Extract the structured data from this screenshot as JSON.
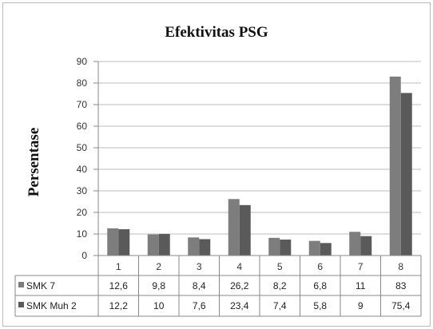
{
  "chart_data": {
    "type": "bar",
    "title": "Efektivitas PSG",
    "ylabel": "Persentase",
    "xlabel": "",
    "ylim": [
      0,
      90
    ],
    "yticks": [
      0,
      10,
      20,
      30,
      40,
      50,
      60,
      70,
      80,
      90
    ],
    "grid": true,
    "legend": "table-left",
    "categories": [
      "1",
      "2",
      "3",
      "4",
      "5",
      "6",
      "7",
      "8"
    ],
    "series": [
      {
        "name": "SMK 7",
        "color": "#7d7d7d",
        "values": [
          12.6,
          9.8,
          8.4,
          26.2,
          8.2,
          6.8,
          11,
          83
        ],
        "labels": [
          "12,6",
          "9,8",
          "8,4",
          "26,2",
          "8,2",
          "6,8",
          "11",
          "83"
        ]
      },
      {
        "name": "SMK Muh 2",
        "color": "#5a5a5a",
        "values": [
          12.2,
          10,
          7.6,
          23.4,
          7.4,
          5.8,
          9,
          75.4
        ],
        "labels": [
          "12,2",
          "10",
          "7,6",
          "23,4",
          "7,4",
          "5,8",
          "9",
          "75,4"
        ]
      }
    ]
  }
}
